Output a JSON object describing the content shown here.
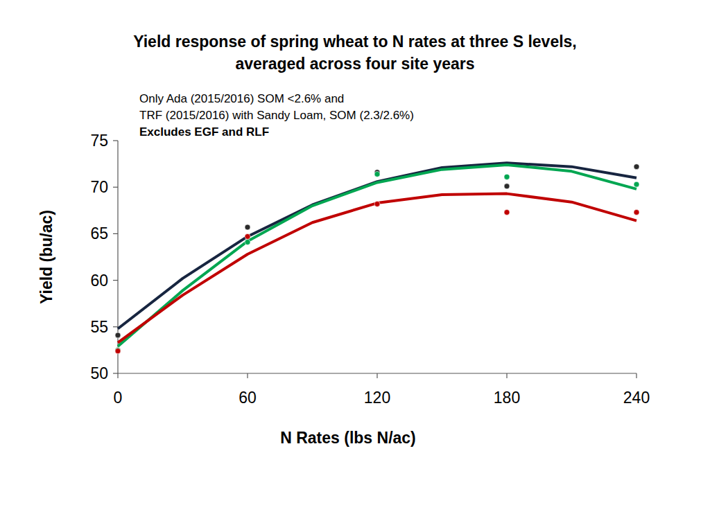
{
  "chart_data": {
    "type": "scatter",
    "title": [
      "Yield response of spring wheat to N rates at three S levels,",
      "averaged across four site years"
    ],
    "annotations": [
      "Only Ada (2015/2016) SOM <2.6% and",
      "TRF (2015/2016) with Sandy Loam, SOM (2.3/2.6%)",
      "Excludes EGF and RLF"
    ],
    "x_label": "N Rates (lbs N/ac)",
    "y_label": "Yield (bu/ac)",
    "xlim": [
      0,
      240
    ],
    "xticks": [
      0,
      60,
      120,
      180,
      240
    ],
    "ylim": [
      50,
      75
    ],
    "yticks": [
      50,
      55,
      60,
      65,
      70,
      75
    ],
    "grid": false,
    "series": [
      {
        "type": "line",
        "color": "#172540",
        "x": [
          0,
          30,
          60,
          90,
          120,
          150,
          180,
          210,
          240
        ],
        "values": [
          54.8,
          60.2,
          64.7,
          68.1,
          70.6,
          72.1,
          72.6,
          72.2,
          71.0
        ]
      },
      {
        "type": "line",
        "color": "#00a651",
        "x": [
          0,
          30,
          60,
          90,
          120,
          150,
          180,
          210,
          240
        ],
        "values": [
          52.9,
          58.9,
          64.2,
          68.0,
          70.5,
          71.9,
          72.4,
          71.7,
          69.8
        ]
      },
      {
        "type": "line",
        "color": "#c00000",
        "x": [
          0,
          30,
          60,
          90,
          120,
          150,
          180,
          210,
          240
        ],
        "values": [
          53.3,
          58.4,
          62.8,
          66.2,
          68.3,
          69.2,
          69.3,
          68.4,
          66.4
        ]
      },
      {
        "type": "scatter",
        "marker": "circle",
        "color": "#2b2b2b",
        "x": [
          0,
          60,
          120,
          180,
          240
        ],
        "values": [
          54.1,
          65.7,
          71.6,
          70.1,
          72.2
        ]
      },
      {
        "type": "scatter",
        "marker": "circle",
        "color": "#00a651",
        "x": [
          0,
          60,
          120,
          180,
          240
        ],
        "values": [
          52.5,
          64.1,
          71.4,
          71.1,
          70.3
        ]
      },
      {
        "type": "scatter",
        "marker": "circle",
        "color": "#c00000",
        "x": [
          0,
          60,
          120,
          180,
          240
        ],
        "values": [
          52.4,
          64.7,
          68.2,
          67.3,
          67.3
        ]
      }
    ]
  }
}
